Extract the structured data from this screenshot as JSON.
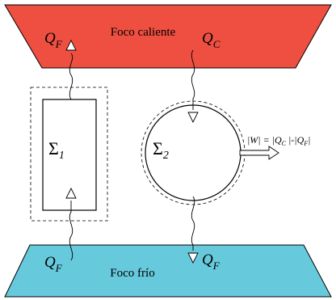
{
  "reservoirs": {
    "hot": {
      "label": "Foco caliente",
      "color": "#ee4f40"
    },
    "cold": {
      "label": "Foco frío",
      "color": "#66c9dc"
    }
  },
  "systems": {
    "sigma1": {
      "symbol": "Σ",
      "index": "1"
    },
    "sigma2": {
      "symbol": "Σ",
      "index": "2"
    }
  },
  "heat_flows": {
    "q_f_top": {
      "symbol": "Q",
      "sub": "F"
    },
    "q_c": {
      "symbol": "Q",
      "sub": "C"
    },
    "q_f_left_bottom": {
      "symbol": "Q",
      "sub": "F"
    },
    "q_f_right_bottom": {
      "symbol": "Q",
      "sub": "F"
    }
  },
  "work": {
    "prefix": "|W| = |Q",
    "sub_c": "C",
    "middle": " |-|Q",
    "sub_f": "F",
    "suffix": "|"
  }
}
